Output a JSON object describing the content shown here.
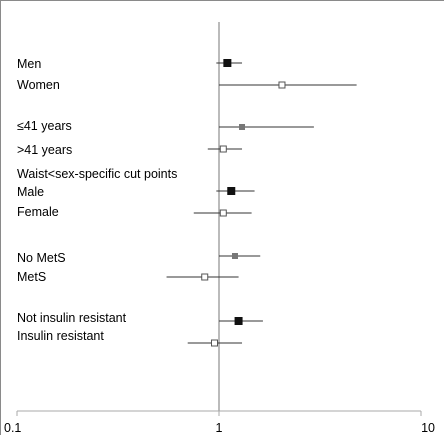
{
  "chart_data": {
    "type": "forest",
    "xscale": "log",
    "xlim": [
      0.1,
      10
    ],
    "reference_line": 1,
    "x_ticks": [
      "0.1",
      "1",
      "10"
    ],
    "rows": [
      {
        "label": "Men",
        "estimate": 1.1,
        "ci": [
          0.97,
          1.3
        ],
        "marker": "filled-square"
      },
      {
        "label": "Women",
        "estimate": 2.05,
        "ci": [
          1.0,
          4.8
        ],
        "marker": "open-square"
      },
      {
        "label": "≤41 years",
        "estimate": 1.3,
        "ci": [
          1.0,
          2.95
        ],
        "marker": "gray-square"
      },
      {
        "label": ">41 years",
        "estimate": 1.05,
        "ci": [
          0.88,
          1.3
        ],
        "marker": "open-square"
      },
      {
        "label": "Waist<sex-specific cut points",
        "estimate": null,
        "ci": null,
        "marker": "none"
      },
      {
        "label": "Male",
        "estimate": 1.15,
        "ci": [
          0.97,
          1.5
        ],
        "marker": "filled-square"
      },
      {
        "label": "Female",
        "estimate": 1.05,
        "ci": [
          0.75,
          1.45
        ],
        "marker": "open-square"
      },
      {
        "label": "No MetS",
        "estimate": 1.2,
        "ci": [
          1.0,
          1.6
        ],
        "marker": "gray-square"
      },
      {
        "label": "MetS",
        "estimate": 0.85,
        "ci": [
          0.55,
          1.25
        ],
        "marker": "open-square"
      },
      {
        "label": "Not insulin  resistant",
        "estimate": 1.25,
        "ci": [
          1.0,
          1.65
        ],
        "marker": "filled-square"
      },
      {
        "label": "Insulin resistant",
        "estimate": 0.95,
        "ci": [
          0.7,
          1.3
        ],
        "marker": "open-square"
      }
    ]
  }
}
